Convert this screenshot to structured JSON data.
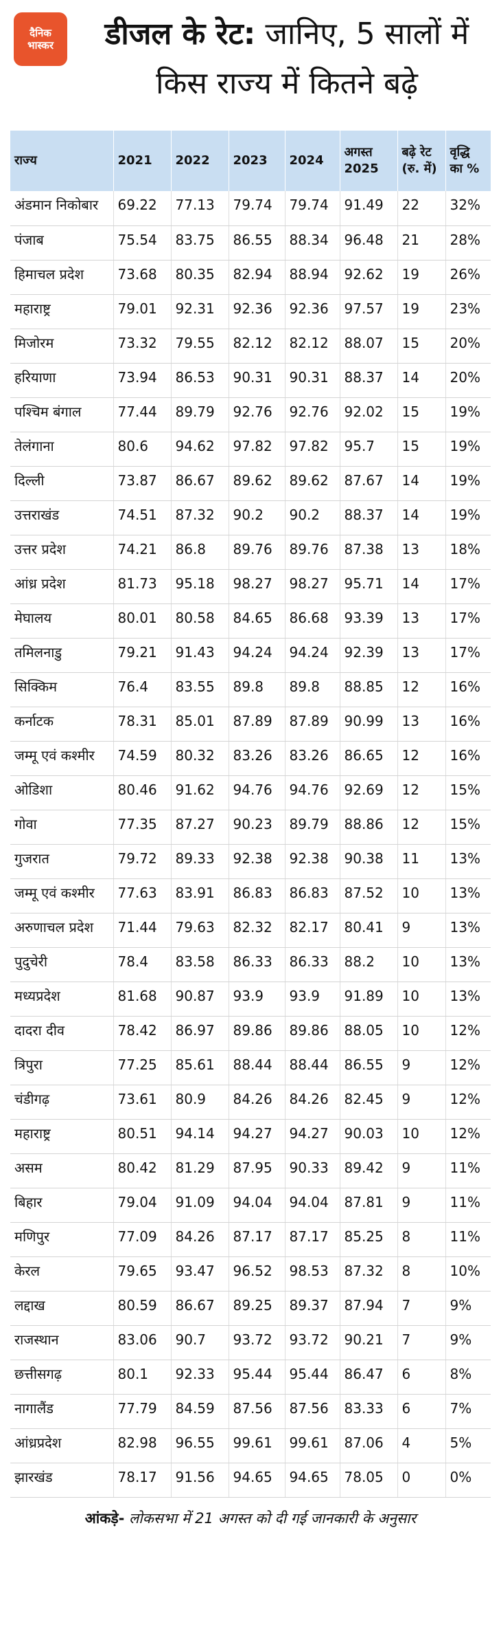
{
  "header": {
    "logo": "दैनिक भास्कर",
    "title_bold": "डीजल के रेट:",
    "title_rest": "जानिए, 5 सालों में किस राज्य में कितने बढ़े"
  },
  "table": {
    "columns": [
      "राज्य",
      "2021",
      "2022",
      "2023",
      "2024",
      "अगस्त 2025",
      "बढ़े रेट (रु. में)",
      "वृद्धि का %"
    ],
    "rows": [
      [
        "अंडमान निकोबार",
        "69.22",
        "77.13",
        "79.74",
        "79.74",
        "91.49",
        "22",
        "32%"
      ],
      [
        "पंजाब",
        "75.54",
        "83.75",
        "86.55",
        "88.34",
        "96.48",
        "21",
        "28%"
      ],
      [
        "हिमाचल प्रदेश",
        "73.68",
        "80.35",
        "82.94",
        "88.94",
        "92.62",
        "19",
        "26%"
      ],
      [
        "महाराष्ट्र",
        "79.01",
        "92.31",
        "92.36",
        "92.36",
        "97.57",
        "19",
        "23%"
      ],
      [
        "मिजोरम",
        "73.32",
        "79.55",
        "82.12",
        "82.12",
        "88.07",
        "15",
        "20%"
      ],
      [
        "हरियाणा",
        "73.94",
        "86.53",
        "90.31",
        "90.31",
        "88.37",
        "14",
        "20%"
      ],
      [
        "पश्चिम बंगाल",
        "77.44",
        "89.79",
        "92.76",
        "92.76",
        "92.02",
        "15",
        "19%"
      ],
      [
        "तेलंगाना",
        "80.6",
        "94.62",
        "97.82",
        "97.82",
        "95.7",
        "15",
        "19%"
      ],
      [
        "दिल्ली",
        "73.87",
        "86.67",
        "89.62",
        "89.62",
        "87.67",
        "14",
        "19%"
      ],
      [
        "उत्तराखंड",
        "74.51",
        "87.32",
        "90.2",
        "90.2",
        "88.37",
        "14",
        "19%"
      ],
      [
        "उत्तर प्रदेश",
        "74.21",
        "86.8",
        "89.76",
        "89.76",
        "87.38",
        "13",
        "18%"
      ],
      [
        "आंध्र प्रदेश",
        "81.73",
        "95.18",
        "98.27",
        "98.27",
        "95.71",
        "14",
        "17%"
      ],
      [
        "मेघालय",
        "80.01",
        "80.58",
        "84.65",
        "86.68",
        "93.39",
        "13",
        "17%"
      ],
      [
        "तमिलनाडु",
        "79.21",
        "91.43",
        "94.24",
        "94.24",
        "92.39",
        "13",
        "17%"
      ],
      [
        "सिक्किम",
        "76.4",
        "83.55",
        "89.8",
        "89.8",
        "88.85",
        "12",
        "16%"
      ],
      [
        "कर्नाटक",
        "78.31",
        "85.01",
        "87.89",
        "87.89",
        "90.99",
        "13",
        "16%"
      ],
      [
        "जम्मू एवं कश्मीर",
        "74.59",
        "80.32",
        "83.26",
        "83.26",
        "86.65",
        "12",
        "16%"
      ],
      [
        "ओडिशा",
        "80.46",
        "91.62",
        "94.76",
        "94.76",
        "92.69",
        "12",
        "15%"
      ],
      [
        "गोवा",
        "77.35",
        "87.27",
        "90.23",
        "89.79",
        "88.86",
        "12",
        "15%"
      ],
      [
        "गुजरात",
        "79.72",
        "89.33",
        "92.38",
        "92.38",
        "90.38",
        "11",
        "13%"
      ],
      [
        "जम्मू एवं कश्मीर",
        "77.63",
        "83.91",
        "86.83",
        "86.83",
        "87.52",
        "10",
        "13%"
      ],
      [
        "अरुणाचल प्रदेश",
        "71.44",
        "79.63",
        "82.32",
        "82.17",
        "80.41",
        "9",
        "13%"
      ],
      [
        "पुदुचेरी",
        "78.4",
        "83.58",
        "86.33",
        "86.33",
        "88.2",
        "10",
        "13%"
      ],
      [
        "मध्यप्रदेश",
        "81.68",
        "90.87",
        "93.9",
        "93.9",
        "91.89",
        "10",
        "13%"
      ],
      [
        "दादरा दीव",
        "78.42",
        "86.97",
        "89.86",
        "89.86",
        "88.05",
        "10",
        "12%"
      ],
      [
        "त्रिपुरा",
        "77.25",
        "85.61",
        "88.44",
        "88.44",
        "86.55",
        "9",
        "12%"
      ],
      [
        "चंडीगढ़",
        "73.61",
        "80.9",
        "84.26",
        "84.26",
        "82.45",
        "9",
        "12%"
      ],
      [
        "महाराष्ट्र",
        "80.51",
        "94.14",
        "94.27",
        "94.27",
        "90.03",
        "10",
        "12%"
      ],
      [
        "असम",
        "80.42",
        "81.29",
        "87.95",
        "90.33",
        "89.42",
        "9",
        "11%"
      ],
      [
        "बिहार",
        "79.04",
        "91.09",
        "94.04",
        "94.04",
        "87.81",
        "9",
        "11%"
      ],
      [
        "मणिपुर",
        "77.09",
        "84.26",
        "87.17",
        "87.17",
        "85.25",
        "8",
        "11%"
      ],
      [
        "केरल",
        "79.65",
        "93.47",
        "96.52",
        "98.53",
        "87.32",
        "8",
        "10%"
      ],
      [
        "लद्दाख",
        "80.59",
        "86.67",
        "89.25",
        "89.37",
        "87.94",
        "7",
        "9%"
      ],
      [
        "राजस्थान",
        "83.06",
        "90.7",
        "93.72",
        "93.72",
        "90.21",
        "7",
        "9%"
      ],
      [
        "छत्तीसगढ़",
        "80.1",
        "92.33",
        "95.44",
        "95.44",
        "86.47",
        "6",
        "8%"
      ],
      [
        "नागालैंड",
        "77.79",
        "84.59",
        "87.56",
        "87.56",
        "83.33",
        "6",
        "7%"
      ],
      [
        "आंध्रप्रदेश",
        "82.98",
        "96.55",
        "99.61",
        "99.61",
        "87.06",
        "4",
        "5%"
      ],
      [
        "झारखंड",
        "78.17",
        "91.56",
        "94.65",
        "94.65",
        "78.05",
        "0",
        "0%"
      ]
    ]
  },
  "footer": {
    "source_label": "आंकड़े-",
    "text": "लोकसभा में 21 अगस्त को दी गई जानकारी के अनुसार"
  }
}
